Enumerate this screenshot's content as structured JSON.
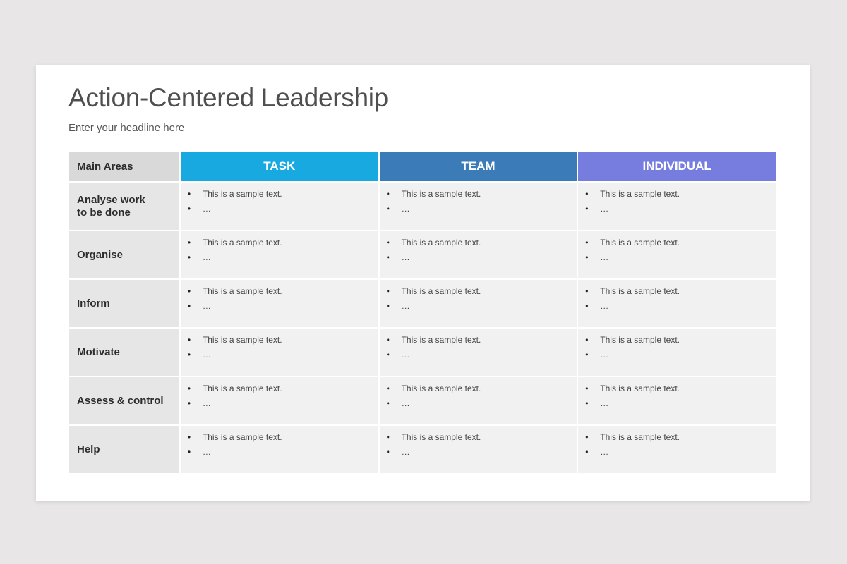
{
  "slide": {
    "title": "Action-Centered Leadership",
    "subtitle": "Enter your headline here"
  },
  "table": {
    "corner_label": "Main Areas",
    "columns": [
      {
        "label": "TASK",
        "color": "#17a9df"
      },
      {
        "label": "TEAM",
        "color": "#3b7bb8"
      },
      {
        "label": "INDIVIDUAL",
        "color": "#767ddf"
      }
    ],
    "bullet_glyph": "•",
    "rows": [
      {
        "label": "Analyse work\nto be done",
        "cells": [
          [
            "This is a sample text.",
            "…"
          ],
          [
            "This is a sample text.",
            "…"
          ],
          [
            "This is a sample text.",
            "…"
          ]
        ]
      },
      {
        "label": "Organise",
        "cells": [
          [
            "This is a sample text.",
            "…"
          ],
          [
            "This is a sample text.",
            "…"
          ],
          [
            "This is a sample text.",
            "…"
          ]
        ]
      },
      {
        "label": "Inform",
        "cells": [
          [
            "This is a sample text.",
            "…"
          ],
          [
            "This is a sample text.",
            "…"
          ],
          [
            "This is a sample text.",
            "…"
          ]
        ]
      },
      {
        "label": "Motivate",
        "cells": [
          [
            "This is a sample text.",
            "…"
          ],
          [
            "This is a sample text.",
            "…"
          ],
          [
            "This is a sample text.",
            "…"
          ]
        ]
      },
      {
        "label": "Assess & control",
        "cells": [
          [
            "This is a sample text.",
            "…"
          ],
          [
            "This is a sample text.",
            "…"
          ],
          [
            "This is a sample text.",
            "…"
          ]
        ]
      },
      {
        "label": "Help",
        "cells": [
          [
            "This is a sample text.",
            "…"
          ],
          [
            "This is a sample text.",
            "…"
          ],
          [
            "This is a sample text.",
            "…"
          ]
        ]
      }
    ]
  }
}
